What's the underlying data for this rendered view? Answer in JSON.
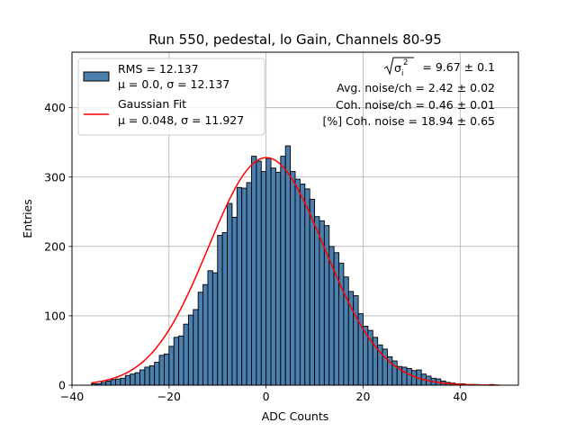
{
  "chart_data": {
    "type": "bar",
    "title": "Run 550, pedestal, lo Gain, Channels 80-95",
    "xlabel": "ADC Counts",
    "ylabel": "Entries",
    "xlim": [
      -40,
      52
    ],
    "ylim": [
      0,
      480
    ],
    "xticks": [
      -40,
      -20,
      0,
      20,
      40
    ],
    "xtick_labels": [
      "−40",
      "−20",
      "0",
      "20",
      "40"
    ],
    "yticks": [
      0,
      100,
      200,
      300,
      400
    ],
    "ytick_labels": [
      "0",
      "100",
      "200",
      "300",
      "400"
    ],
    "grid": true,
    "legend_placement": "top-left",
    "bin_width": 1,
    "bin_start": -36,
    "hist_color": "#4a7fae",
    "fit_color": "#ff0000",
    "series": [
      {
        "name": "RMS = 12.137",
        "name_line2": "μ = 0.0, σ = 12.137",
        "type": "histogram",
        "values": [
          2,
          2,
          4,
          6,
          8,
          9,
          10,
          14,
          16,
          18,
          22,
          26,
          28,
          33,
          43,
          45,
          56,
          69,
          71,
          88,
          101,
          109,
          134,
          145,
          165,
          162,
          216,
          220,
          262,
          242,
          285,
          284,
          292,
          330,
          323,
          308,
          327,
          313,
          307,
          330,
          345,
          308,
          297,
          290,
          283,
          268,
          243,
          237,
          230,
          200,
          191,
          176,
          156,
          135,
          129,
          103,
          85,
          79,
          69,
          58,
          52,
          41,
          35,
          27,
          26,
          24,
          21,
          22,
          16,
          13,
          10,
          9,
          6,
          4,
          3,
          2,
          2,
          1,
          1,
          1,
          0,
          0,
          1,
          0
        ]
      },
      {
        "name": "Gaussian Fit",
        "name_line2": "μ = 0.048, σ = 11.927",
        "type": "gaussian",
        "mu": 0.048,
        "sigma": 11.927,
        "amplitude": 328,
        "x_range": [
          -36,
          48
        ]
      }
    ],
    "annotations": [
      {
        "sqrt_label": "σ",
        "subscript": "i",
        "superscript": "2",
        "value": "= 9.67 ± 0.1"
      },
      {
        "text": "Avg. noise/ch = 2.42 ± 0.02"
      },
      {
        "text": "Coh. noise/ch = 0.46 ± 0.01"
      },
      {
        "text": "[%] Coh. noise = 18.94 ± 0.65"
      }
    ]
  }
}
